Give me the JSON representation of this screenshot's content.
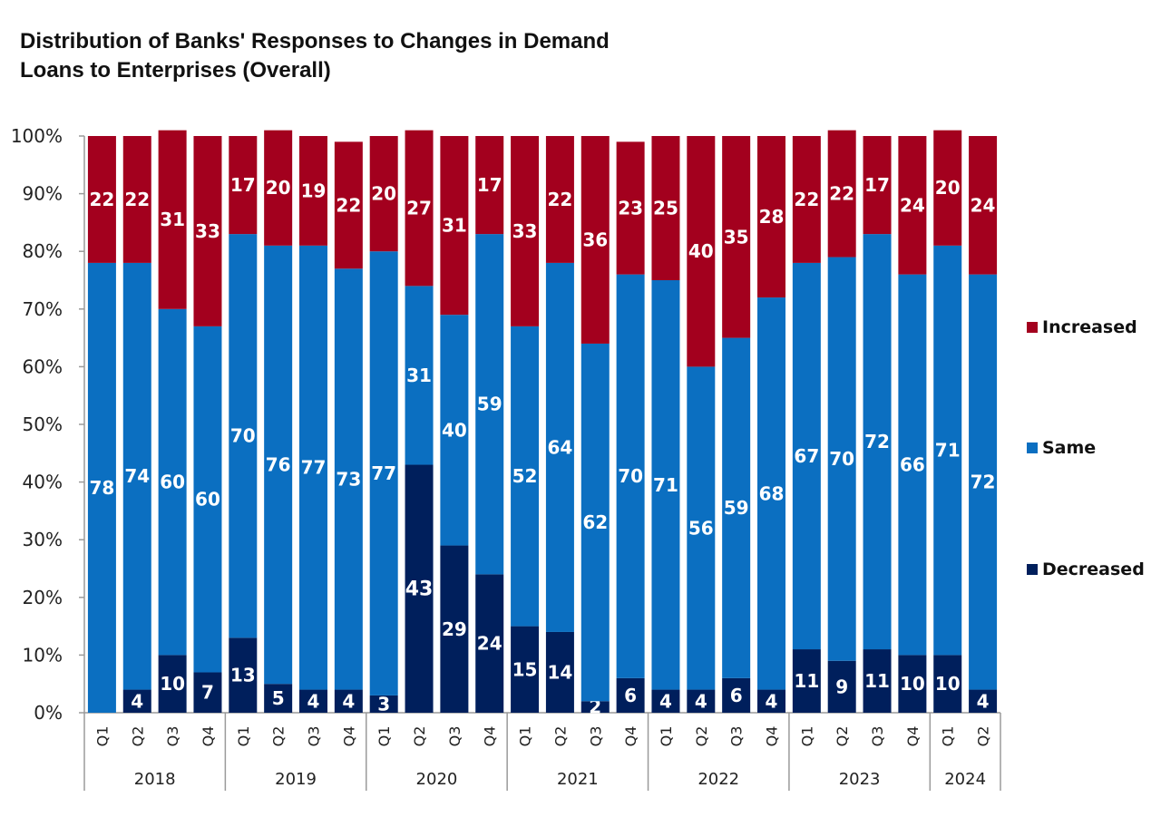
{
  "title_line1": "Distribution of Banks' Responses to Changes in Demand",
  "title_line2": "Loans to Enterprises (Overall)",
  "colors": {
    "increased": "#A3001E",
    "same": "#0B6FC1",
    "decreased": "#001F5C",
    "axis": "#9a9a9a"
  },
  "chart_data": {
    "type": "bar",
    "stacked": true,
    "title": "Distribution of Banks' Responses to Changes in Demand Loans to Enterprises (Overall)",
    "categories": [
      "Q1",
      "Q2",
      "Q3",
      "Q4",
      "Q1",
      "Q2",
      "Q3",
      "Q4",
      "Q1",
      "Q2",
      "Q3",
      "Q4",
      "Q1",
      "Q2",
      "Q3",
      "Q4",
      "Q1",
      "Q2",
      "Q3",
      "Q4",
      "Q1",
      "Q2",
      "Q3",
      "Q4",
      "Q1",
      "Q2"
    ],
    "year_groups": [
      {
        "label": "2018",
        "count": 4
      },
      {
        "label": "2019",
        "count": 4
      },
      {
        "label": "2020",
        "count": 4
      },
      {
        "label": "2021",
        "count": 4
      },
      {
        "label": "2022",
        "count": 4
      },
      {
        "label": "2023",
        "count": 4
      },
      {
        "label": "2024",
        "count": 2
      }
    ],
    "series": [
      {
        "name": "Decreased",
        "values": [
          0,
          4,
          10,
          7,
          13,
          5,
          4,
          4,
          3,
          43,
          29,
          24,
          15,
          14,
          2,
          6,
          4,
          4,
          6,
          4,
          11,
          9,
          11,
          10,
          10,
          4
        ]
      },
      {
        "name": "Same",
        "values": [
          78,
          74,
          60,
          60,
          70,
          76,
          77,
          73,
          77,
          31,
          40,
          59,
          52,
          64,
          62,
          70,
          71,
          56,
          59,
          68,
          67,
          70,
          72,
          66,
          71,
          72
        ]
      },
      {
        "name": "Increased",
        "values": [
          22,
          22,
          31,
          33,
          17,
          20,
          19,
          22,
          20,
          27,
          31,
          17,
          33,
          22,
          36,
          23,
          25,
          40,
          35,
          28,
          22,
          22,
          17,
          24,
          20,
          24
        ]
      }
    ],
    "y_ticks": [
      "0%",
      "10%",
      "20%",
      "30%",
      "40%",
      "50%",
      "60%",
      "70%",
      "80%",
      "90%",
      "100%"
    ],
    "ylim": [
      0,
      100
    ],
    "legend": [
      "Increased",
      "Same",
      "Decreased"
    ],
    "legend_position": "right"
  }
}
